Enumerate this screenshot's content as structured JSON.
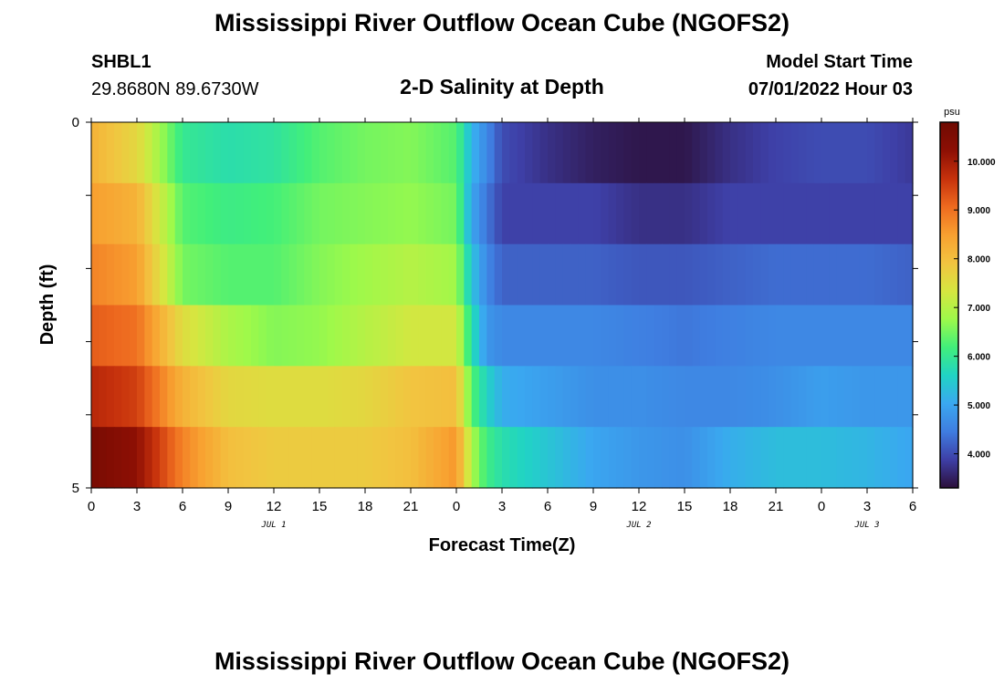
{
  "title": "Mississippi River Outflow Ocean Cube (NGOFS2)",
  "title_repeat": "Mississippi River Outflow Ocean Cube (NGOFS2)",
  "station": {
    "id": "SHBL1",
    "coords": "29.8680N  89.6730W"
  },
  "subtitle": "2-D Salinity at Depth",
  "model_start": {
    "label": "Model Start Time",
    "value": "07/01/2022 Hour 03"
  },
  "colors": {
    "colormap": [
      "#2c0f3a",
      "#3e3fa6",
      "#3f7de0",
      "#3aa8f0",
      "#20d4c4",
      "#42ef7a",
      "#9ef94a",
      "#d6e640",
      "#f2c440",
      "#f8a030",
      "#ee6a1f",
      "#c6310c",
      "#8d0f04",
      "#6e0a02"
    ]
  },
  "chart_data": {
    "type": "heatmap",
    "xlabel": "Forecast Time(Z)",
    "ylabel": "Depth (ft)",
    "x_tick_labels": [
      "0",
      "3",
      "6",
      "9",
      "12",
      "15",
      "18",
      "21",
      "0",
      "3",
      "6",
      "9",
      "12",
      "15",
      "18",
      "21",
      "0",
      "3",
      "6"
    ],
    "x_range_hours": [
      0,
      54
    ],
    "date_labels": [
      {
        "text": "JUL 1",
        "hour": 12
      },
      {
        "text": "JUL 2",
        "hour": 36
      },
      {
        "text": "JUL 3",
        "hour": 51
      }
    ],
    "y_tick_labels": [
      "0",
      "5"
    ],
    "y_range": [
      0,
      5
    ],
    "depth_layers": 5,
    "colorbar": {
      "unit": "psu",
      "min": 3.3,
      "max": 10.8,
      "tick_labels": [
        "4.000",
        "5.000",
        "6.000",
        "7.000",
        "8.000",
        "9.000",
        "10.000"
      ],
      "tick_values": [
        4,
        5,
        6,
        7,
        8,
        9,
        10
      ]
    },
    "hours": [
      0,
      3,
      6,
      9,
      12,
      15,
      18,
      21,
      24,
      25,
      26,
      27,
      30,
      33,
      36,
      39,
      42,
      45,
      48,
      51,
      54
    ],
    "salinity": [
      [
        8.2,
        7.6,
        6.0,
        5.8,
        5.9,
        6.3,
        6.5,
        6.6,
        6.3,
        5.2,
        4.6,
        4.0,
        3.7,
        3.5,
        3.4,
        3.4,
        3.7,
        3.9,
        4.0,
        4.0,
        3.8
      ],
      [
        8.5,
        8.2,
        6.3,
        6.1,
        6.2,
        6.5,
        6.6,
        6.7,
        6.5,
        5.0,
        4.4,
        3.9,
        3.9,
        3.9,
        3.7,
        3.7,
        3.9,
        3.9,
        3.9,
        3.9,
        3.9
      ],
      [
        8.8,
        8.5,
        6.5,
        6.3,
        6.3,
        6.6,
        6.8,
        7.0,
        6.8,
        5.4,
        4.6,
        4.2,
        4.2,
        4.2,
        4.1,
        4.1,
        4.2,
        4.3,
        4.3,
        4.3,
        4.2
      ],
      [
        9.2,
        9.0,
        7.5,
        6.9,
        6.6,
        6.7,
        7.0,
        7.3,
        7.3,
        5.8,
        4.8,
        4.6,
        4.6,
        4.6,
        4.5,
        4.4,
        4.5,
        4.6,
        4.6,
        4.6,
        4.6
      ],
      [
        9.8,
        9.5,
        8.2,
        7.6,
        7.5,
        7.5,
        7.6,
        7.9,
        8.0,
        6.3,
        5.6,
        5.1,
        4.9,
        4.7,
        4.7,
        4.6,
        4.6,
        4.7,
        4.9,
        4.8,
        4.8
      ],
      [
        10.6,
        10.2,
        8.8,
        8.0,
        7.8,
        7.8,
        7.8,
        8.0,
        8.6,
        6.9,
        6.1,
        5.8,
        5.4,
        5.0,
        4.8,
        4.7,
        5.1,
        5.3,
        5.3,
        5.2,
        5.0
      ]
    ]
  }
}
